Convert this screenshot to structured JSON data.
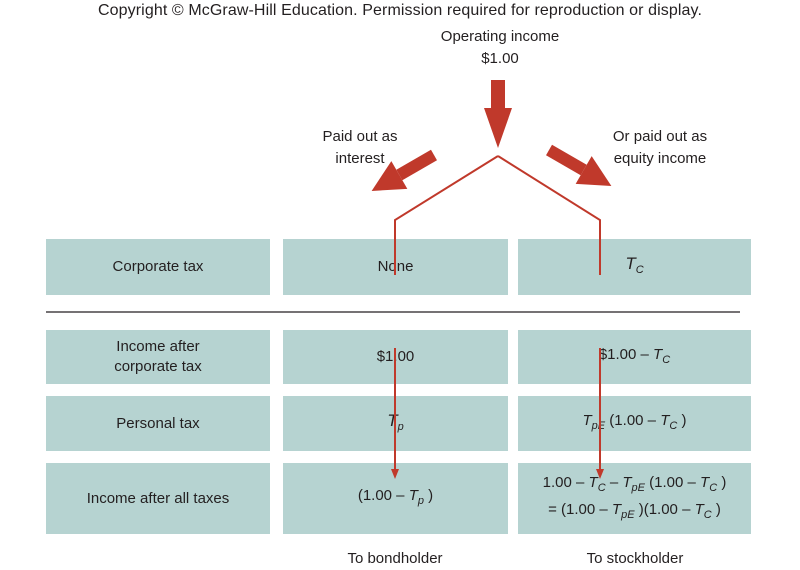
{
  "copyright": "Copyright © McGraw-Hill Education. Permission required for reproduction or display.",
  "top": {
    "operating_income_label": "Operating income",
    "operating_income_value": "$1.00"
  },
  "branches": {
    "left_line1": "Paid out as",
    "left_line2": "interest",
    "right_line1": "Or paid out as",
    "right_line2": "equity income"
  },
  "rows": {
    "corporate_tax": "Corporate tax",
    "income_after_corp_line1": "Income after",
    "income_after_corp_line2": "corporate tax",
    "personal_tax": "Personal tax",
    "income_after_all": "Income after all taxes"
  },
  "bond": {
    "corporate_tax": "None",
    "income_after_corp": "$1.00",
    "personal_tax_symbol": "T",
    "personal_tax_sub": "p",
    "after_all_prefix": "(1.00 –",
    "after_all_symbol": "T",
    "after_all_sub": "p",
    "after_all_suffix": ")"
  },
  "stock": {
    "corporate_tax_symbol": "T",
    "corporate_tax_sub": "C",
    "income_after_corp_prefix": "$1.00 –",
    "income_after_corp_symbol": "T",
    "income_after_corp_sub": "C",
    "personal_tax_expr": "T_pE (1.00 – T_C )",
    "after_all_line1": "1.00 – T_C – T_pE (1.00 – T_C )",
    "after_all_line2": "= (1.00 – T_pE )(1.00 – T_C )"
  },
  "footer": {
    "bondholder": "To bondholder",
    "stockholder": "To stockholder"
  },
  "colors": {
    "cell_fill": "#b6d3d1",
    "arrow": "#c0392b",
    "text": "#231f20"
  }
}
